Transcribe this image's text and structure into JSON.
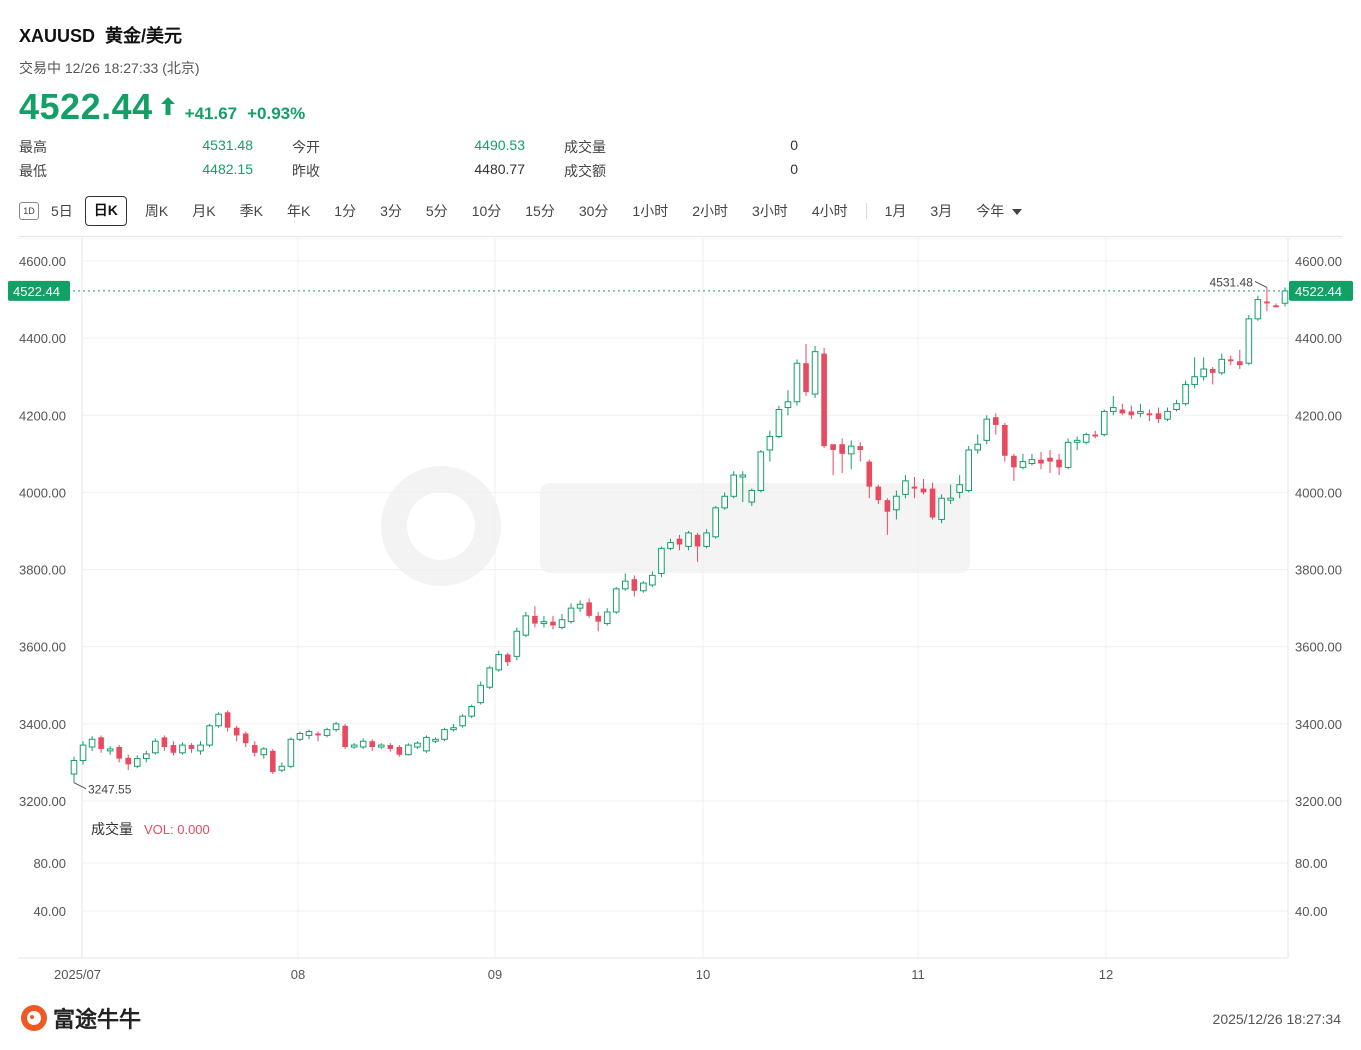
{
  "header": {
    "symbol": "XAUUSD",
    "name": "黄金/美元",
    "status": "交易中 12/26 18:27:33 (北京)",
    "price": "4522.44",
    "change": "+41.67",
    "change_pct": "+0.93%"
  },
  "stats": {
    "high_label": "最高",
    "high_value": "4531.48",
    "low_label": "最低",
    "low_value": "4482.15",
    "open_label": "今开",
    "open_value": "4490.53",
    "prev_close_label": "昨收",
    "prev_close_value": "4480.77",
    "volume_label": "成交量",
    "volume_value": "0",
    "turnover_label": "成交额",
    "turnover_value": "0"
  },
  "tabs": {
    "icon_label": "1D",
    "items": [
      "5日",
      "日K",
      "周K",
      "月K",
      "季K",
      "年K",
      "1分",
      "3分",
      "5分",
      "10分",
      "15分",
      "30分",
      "1小时",
      "2小时",
      "3小时",
      "4小时",
      "1月",
      "3月"
    ],
    "active": "日K",
    "dropdown": "今年"
  },
  "chart": {
    "price_label": "4522.44",
    "max_label": "4531.48",
    "min_label": "3247.55",
    "volume_title": "成交量",
    "volume_value": "VOL: 0.000",
    "y_ticks": [
      "4600.00",
      "4400.00",
      "4200.00",
      "4000.00",
      "3800.00",
      "3600.00",
      "3400.00",
      "3200.00"
    ],
    "vol_ticks": [
      "80.00",
      "40.00"
    ],
    "months": [
      "2025/07",
      "08",
      "09",
      "10",
      "11",
      "12"
    ]
  },
  "chart_data": {
    "type": "candlestick",
    "ylim": [
      3200,
      4600
    ],
    "current_price": 4522.44,
    "period_high": 4531.48,
    "period_low": 3247.55,
    "candles": [
      [
        3270,
        3305,
        3247.55,
        3315
      ],
      [
        3305,
        3345,
        3295,
        3355
      ],
      [
        3340,
        3360,
        3330,
        3368
      ],
      [
        3365,
        3335,
        3325,
        3370
      ],
      [
        3330,
        3335,
        3320,
        3342
      ],
      [
        3340,
        3310,
        3300,
        3345
      ],
      [
        3312,
        3295,
        3280,
        3320
      ],
      [
        3290,
        3310,
        3285,
        3318
      ],
      [
        3310,
        3322,
        3300,
        3330
      ],
      [
        3325,
        3355,
        3320,
        3362
      ],
      [
        3365,
        3340,
        3330,
        3370
      ],
      [
        3345,
        3325,
        3318,
        3355
      ],
      [
        3325,
        3345,
        3320,
        3352
      ],
      [
        3345,
        3335,
        3325,
        3350
      ],
      [
        3330,
        3345,
        3320,
        3355
      ],
      [
        3345,
        3395,
        3340,
        3400
      ],
      [
        3395,
        3425,
        3390,
        3430
      ],
      [
        3430,
        3390,
        3380,
        3435
      ],
      [
        3390,
        3370,
        3355,
        3395
      ],
      [
        3375,
        3350,
        3340,
        3380
      ],
      [
        3345,
        3325,
        3315,
        3355
      ],
      [
        3320,
        3335,
        3310,
        3340
      ],
      [
        3330,
        3275,
        3270,
        3335
      ],
      [
        3280,
        3290,
        3275,
        3300
      ],
      [
        3290,
        3360,
        3285,
        3365
      ],
      [
        3360,
        3375,
        3355,
        3380
      ],
      [
        3370,
        3380,
        3360,
        3385
      ],
      [
        3375,
        3370,
        3355,
        3380
      ],
      [
        3370,
        3385,
        3365,
        3390
      ],
      [
        3385,
        3400,
        3380,
        3405
      ],
      [
        3395,
        3340,
        3335,
        3400
      ],
      [
        3340,
        3345,
        3335,
        3350
      ],
      [
        3340,
        3355,
        3335,
        3362
      ],
      [
        3355,
        3340,
        3330,
        3360
      ],
      [
        3340,
        3345,
        3335,
        3350
      ],
      [
        3345,
        3335,
        3328,
        3350
      ],
      [
        3340,
        3320,
        3315,
        3345
      ],
      [
        3320,
        3345,
        3318,
        3350
      ],
      [
        3340,
        3350,
        3335,
        3355
      ],
      [
        3330,
        3365,
        3325,
        3370
      ],
      [
        3355,
        3360,
        3350,
        3365
      ],
      [
        3360,
        3385,
        3355,
        3390
      ],
      [
        3385,
        3390,
        3380,
        3400
      ],
      [
        3395,
        3420,
        3390,
        3425
      ],
      [
        3420,
        3445,
        3415,
        3450
      ],
      [
        3455,
        3500,
        3450,
        3510
      ],
      [
        3495,
        3545,
        3490,
        3550
      ],
      [
        3540,
        3580,
        3535,
        3590
      ],
      [
        3580,
        3560,
        3550,
        3585
      ],
      [
        3575,
        3640,
        3565,
        3650
      ],
      [
        3630,
        3680,
        3625,
        3690
      ],
      [
        3680,
        3660,
        3650,
        3705
      ],
      [
        3660,
        3665,
        3650,
        3680
      ],
      [
        3665,
        3655,
        3645,
        3680
      ],
      [
        3650,
        3670,
        3645,
        3685
      ],
      [
        3665,
        3700,
        3660,
        3712
      ],
      [
        3700,
        3710,
        3690,
        3720
      ],
      [
        3715,
        3680,
        3675,
        3725
      ],
      [
        3680,
        3665,
        3640,
        3690
      ],
      [
        3660,
        3690,
        3655,
        3700
      ],
      [
        3690,
        3750,
        3685,
        3755
      ],
      [
        3750,
        3770,
        3745,
        3790
      ],
      [
        3775,
        3745,
        3730,
        3785
      ],
      [
        3745,
        3765,
        3740,
        3770
      ],
      [
        3760,
        3785,
        3755,
        3795
      ],
      [
        3790,
        3855,
        3780,
        3860
      ],
      [
        3855,
        3870,
        3850,
        3880
      ],
      [
        3880,
        3865,
        3850,
        3890
      ],
      [
        3860,
        3895,
        3850,
        3900
      ],
      [
        3890,
        3860,
        3820,
        3895
      ],
      [
        3860,
        3895,
        3855,
        3905
      ],
      [
        3885,
        3960,
        3880,
        3965
      ],
      [
        3960,
        3990,
        3955,
        4000
      ],
      [
        3990,
        4045,
        3985,
        4055
      ],
      [
        4040,
        4045,
        3975,
        4055
      ],
      [
        3975,
        4005,
        3965,
        4010
      ],
      [
        4005,
        4105,
        4000,
        4110
      ],
      [
        4110,
        4145,
        4080,
        4160
      ],
      [
        4145,
        4215,
        4140,
        4225
      ],
      [
        4220,
        4235,
        4200,
        4265
      ],
      [
        4235,
        4335,
        4225,
        4345
      ],
      [
        4335,
        4260,
        4250,
        4385
      ],
      [
        4255,
        4365,
        4245,
        4380
      ],
      [
        4360,
        4120,
        4115,
        4375
      ],
      [
        4125,
        4110,
        4045,
        4120
      ],
      [
        4125,
        4100,
        4050,
        4140
      ],
      [
        4100,
        4120,
        4060,
        4135
      ],
      [
        4120,
        4110,
        4080,
        4130
      ],
      [
        4080,
        4015,
        3985,
        4085
      ],
      [
        4015,
        3980,
        3970,
        4020
      ],
      [
        3980,
        3950,
        3890,
        3985
      ],
      [
        3955,
        3990,
        3930,
        4005
      ],
      [
        3995,
        4030,
        3985,
        4045
      ],
      [
        4015,
        4010,
        3985,
        4040
      ],
      [
        4010,
        4000,
        3995,
        4035
      ],
      [
        4010,
        3935,
        3930,
        4025
      ],
      [
        3930,
        3985,
        3920,
        3995
      ],
      [
        3980,
        3985,
        3970,
        4020
      ],
      [
        4000,
        4020,
        3985,
        4045
      ],
      [
        4005,
        4110,
        4000,
        4120
      ],
      [
        4110,
        4125,
        4100,
        4150
      ],
      [
        4135,
        4190,
        4125,
        4200
      ],
      [
        4195,
        4175,
        4150,
        4205
      ],
      [
        4175,
        4095,
        4080,
        4180
      ],
      [
        4095,
        4065,
        4030,
        4100
      ],
      [
        4065,
        4080,
        4060,
        4100
      ],
      [
        4075,
        4085,
        4070,
        4100
      ],
      [
        4085,
        4075,
        4060,
        4105
      ],
      [
        4090,
        4080,
        4050,
        4110
      ],
      [
        4085,
        4065,
        4045,
        4100
      ],
      [
        4065,
        4130,
        4060,
        4140
      ],
      [
        4130,
        4135,
        4110,
        4145
      ],
      [
        4130,
        4150,
        4125,
        4155
      ],
      [
        4150,
        4145,
        4140,
        4160
      ],
      [
        4150,
        4210,
        4145,
        4215
      ],
      [
        4210,
        4220,
        4200,
        4250
      ],
      [
        4215,
        4205,
        4200,
        4230
      ],
      [
        4210,
        4200,
        4190,
        4225
      ],
      [
        4205,
        4210,
        4195,
        4230
      ],
      [
        4205,
        4200,
        4185,
        4215
      ],
      [
        4205,
        4190,
        4180,
        4220
      ],
      [
        4190,
        4210,
        4185,
        4220
      ],
      [
        4215,
        4230,
        4210,
        4240
      ],
      [
        4230,
        4280,
        4225,
        4290
      ],
      [
        4280,
        4300,
        4270,
        4350
      ],
      [
        4300,
        4320,
        4290,
        4350
      ],
      [
        4320,
        4310,
        4280,
        4325
      ],
      [
        4310,
        4345,
        4305,
        4360
      ],
      [
        4345,
        4340,
        4330,
        4355
      ],
      [
        4340,
        4330,
        4320,
        4370
      ],
      [
        4335,
        4450,
        4330,
        4460
      ],
      [
        4450,
        4500,
        4445,
        4510
      ],
      [
        4495,
        4490,
        4470,
        4531.48
      ],
      [
        4485,
        4480,
        4480,
        4490
      ],
      [
        4490.53,
        4522.44,
        4482.15,
        4531.48
      ]
    ]
  }
}
